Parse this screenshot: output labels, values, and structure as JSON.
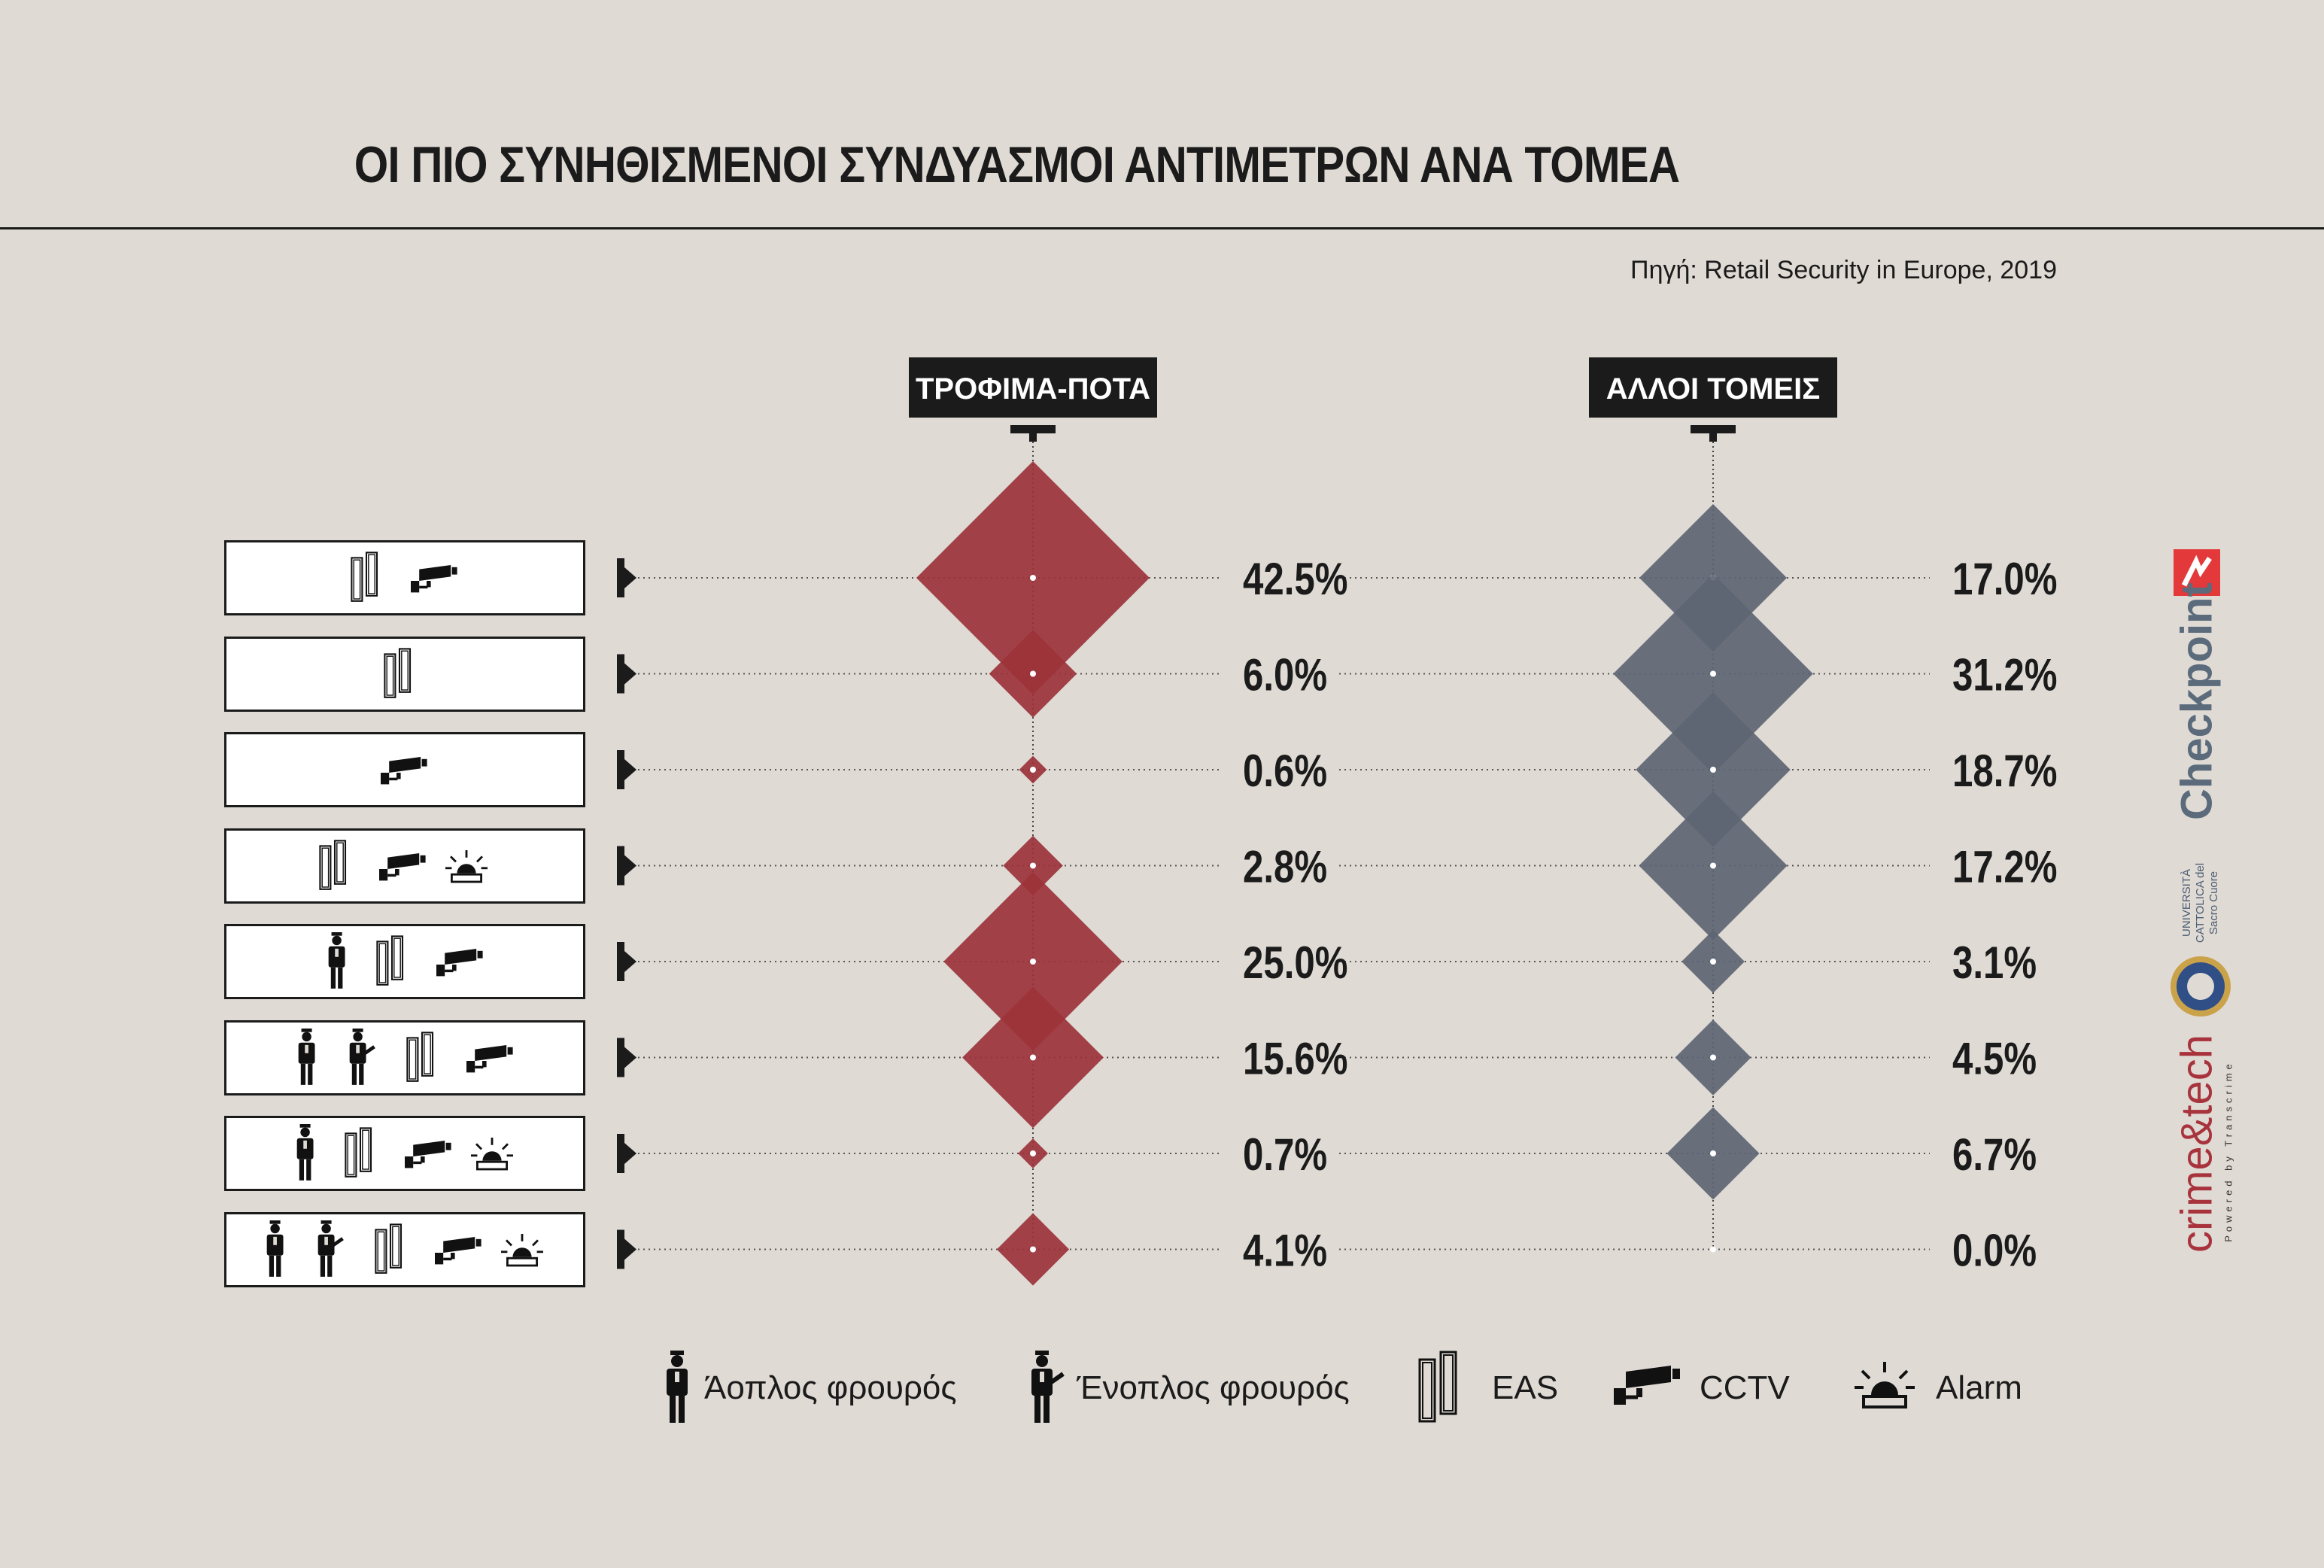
{
  "title": "ΟΙ ΠΙΟ ΣΥΝΗΘΙΣΜΕΝΟΙ ΣΥΝΔΥΑΣΜΟΙ ΑΝΤΙΜΕΤΡΩΝ ΑΝΑ ΤΟΜΕΑ",
  "source": "Πηγή: Retail Security in Europe, 2019",
  "chart_data": {
    "type": "bubble-diamond",
    "columns": [
      {
        "name": "ΤΡΟΦΙΜΑ-ΠΟΤΑ",
        "color": "#9b333a"
      },
      {
        "name": "ΑΛΛΟΙ ΤΟΜΕΙΣ",
        "color": "#5d6572"
      }
    ],
    "rows": [
      {
        "combo": [
          "EAS",
          "CCTV"
        ],
        "values": [
          42.5,
          17.0
        ],
        "labels": [
          "42.5%",
          "17.0%"
        ]
      },
      {
        "combo": [
          "EAS"
        ],
        "values": [
          6.0,
          31.2
        ],
        "labels": [
          "6.0%",
          "31.2%"
        ]
      },
      {
        "combo": [
          "CCTV"
        ],
        "values": [
          0.6,
          18.7
        ],
        "labels": [
          "0.6%",
          "18.7%"
        ]
      },
      {
        "combo": [
          "EAS",
          "CCTV",
          "Alarm"
        ],
        "values": [
          2.8,
          17.2
        ],
        "labels": [
          "2.8%",
          "17.2%"
        ]
      },
      {
        "combo": [
          "Άοπλος φρουρός",
          "EAS",
          "CCTV"
        ],
        "values": [
          25.0,
          3.1
        ],
        "labels": [
          "25.0%",
          "3.1%"
        ]
      },
      {
        "combo": [
          "Άοπλος φρουρός",
          "Ένοπλος φρουρός",
          "EAS",
          "CCTV"
        ],
        "values": [
          15.6,
          4.5
        ],
        "labels": [
          "15.6%",
          "4.5%"
        ]
      },
      {
        "combo": [
          "Άοπλος φρουρός",
          "EAS",
          "CCTV",
          "Alarm"
        ],
        "values": [
          0.7,
          6.7
        ],
        "labels": [
          "0.7%",
          "6.7%"
        ]
      },
      {
        "combo": [
          "Άοπλος φρουρός",
          "Ένοπλος φρουρός",
          "EAS",
          "CCTV",
          "Alarm"
        ],
        "values": [
          4.1,
          0.0
        ],
        "labels": [
          "4.1%",
          "0.0%"
        ]
      }
    ]
  },
  "legend": [
    {
      "icon": "unarmed-guard-icon",
      "label": "Άοπλος φρουρός"
    },
    {
      "icon": "armed-guard-icon",
      "label": "Ένοπλος φρουρός"
    },
    {
      "icon": "eas-icon",
      "label": "EAS"
    },
    {
      "icon": "cctv-icon",
      "label": "CCTV"
    },
    {
      "icon": "alarm-icon",
      "label": "Alarm"
    }
  ],
  "logos": {
    "checkpoint": "Checkpoint",
    "university": "UNIVERSITÀ CATTOLICA del Sacro Cuore",
    "crimetech": "crime&tech",
    "crimetech_sub": "Powered by Transcrime"
  }
}
